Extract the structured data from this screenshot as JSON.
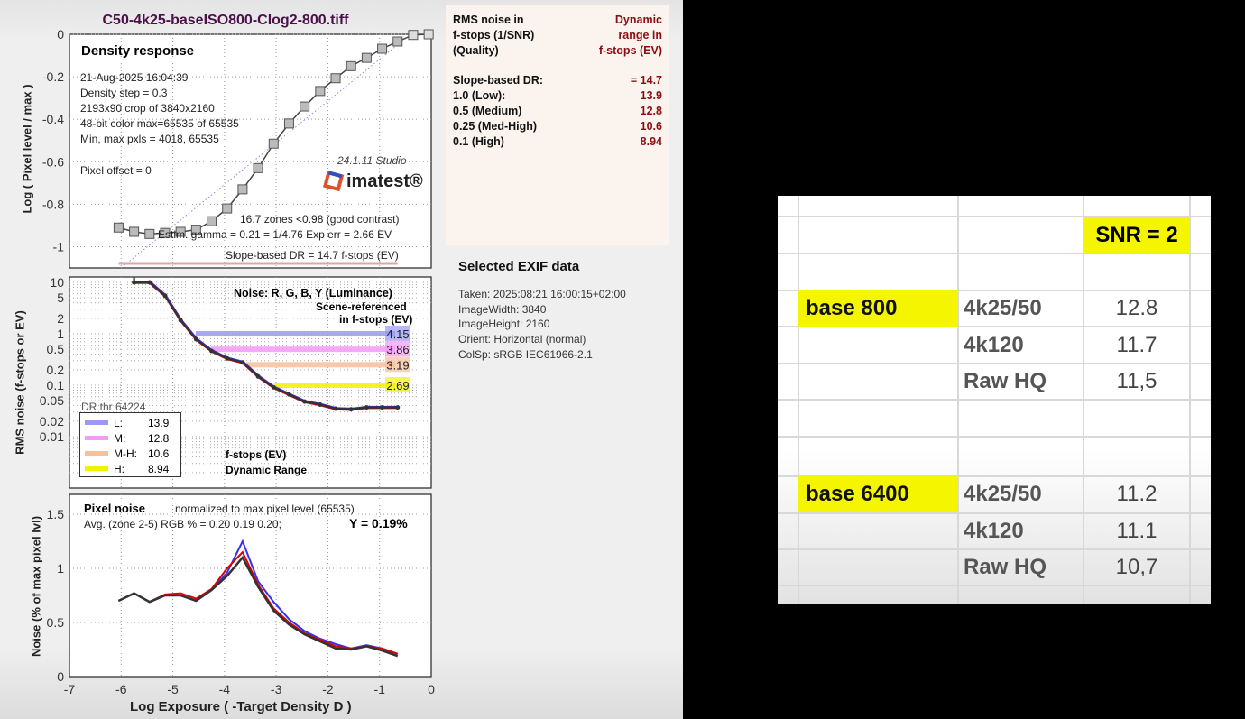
{
  "title": "C50-4k25-baseISO800-Clog2-800.tiff",
  "density": {
    "heading": "Density response",
    "info": [
      "21-Aug-2025 16:04:39",
      "Density step = 0.3",
      "2193x90 crop of 3840x2160",
      "48-bit color  max=65535 of 65535",
      "Min, max pxls = 4018, 65535"
    ],
    "pixel_offset": "Pixel offset = 0",
    "version": "24.1.11  Studio",
    "logo": "imatest®",
    "zones": "16.7 zones <0.98 (good contrast)",
    "gamma": "Estim. gamma = 0.21 = 1/4.76  Exp err = 2.66 EV",
    "slope_dr": "Slope-based DR = 14.7 f-stops (EV)",
    "ylabel": "Log ( Pixel level / max )"
  },
  "noise": {
    "heading": "Noise: R, G, B, Y (Luminance)",
    "scene1": "Scene-referenced",
    "scene2": "in f-stops (EV)",
    "dr_thr": "DR thr 64224",
    "legend": [
      {
        "k": "L:",
        "v": "13.9",
        "color": "#9a9af5"
      },
      {
        "k": "M:",
        "v": "12.8",
        "color": "#f59af5"
      },
      {
        "k": "M-H:",
        "v": "10.6",
        "color": "#f7c09a"
      },
      {
        "k": "H:",
        "v": "8.94",
        "color": "#f2f200"
      }
    ],
    "fstops": "f-stops (EV)",
    "dr": "Dynamic Range",
    "ylabel": "RMS noise (f-stops or EV)"
  },
  "pixelnoise": {
    "heading": "Pixel noise",
    "normalized": "normalized to max pixel level (65535)",
    "avg": "Avg. (zone 2-5) RGB % = 0.20  0.19  0.20;",
    "y": "Y = 0.19%",
    "ylabel": "Noise (% of max pixel lvl)",
    "xlabel": "Log Exposure ( -Target Density D )"
  },
  "panel": {
    "h_left": [
      "RMS noise in",
      "f-stops (1/SNR)",
      "(Quality)"
    ],
    "h_right": [
      "Dynamic",
      "range in",
      "f-stops (EV)"
    ],
    "rows": [
      [
        "Slope-based DR:",
        "= 14.7"
      ],
      [
        "1.0   (Low):",
        "13.9"
      ],
      [
        "0.5   (Medium)",
        "12.8"
      ],
      [
        "0.25 (Med-High)",
        "10.6"
      ],
      [
        "0.1   (High)",
        "8.94"
      ]
    ]
  },
  "exif": {
    "title": "Selected EXIF data",
    "lines": [
      "Taken: 2025:08:21 16:00:15+02:00",
      "ImageWidth:  3840",
      "ImageHeight:  2160",
      "Orient: Horizontal (normal)",
      "ColSp:  sRGB IEC61966-2.1"
    ]
  },
  "sheet": {
    "snr": "SNR = 2",
    "groups": [
      {
        "label": "base 800",
        "rows": [
          [
            "4k25/50",
            "12.8"
          ],
          [
            "4k120",
            "11.7"
          ],
          [
            "Raw HQ",
            "11,5"
          ]
        ]
      },
      {
        "label": "base 6400",
        "rows": [
          [
            "4k25/50",
            "11.2"
          ],
          [
            "4k120",
            "11.1"
          ],
          [
            "Raw HQ",
            "10,7"
          ]
        ]
      }
    ]
  },
  "chart_data": [
    {
      "type": "line",
      "title": "Density response",
      "xlabel": "Log Exposure ( -Target Density D )",
      "ylabel": "Log ( Pixel level / max )",
      "xlim": [
        -7,
        0
      ],
      "ylim": [
        -1.1,
        0
      ],
      "xticks": [
        -7,
        -6,
        -5,
        -4,
        -3,
        -2,
        -1,
        0
      ],
      "yticks": [
        0,
        -0.2,
        -0.4,
        -0.6,
        -0.8,
        -1
      ],
      "x": [
        -6.05,
        -5.75,
        -5.45,
        -5.15,
        -4.85,
        -4.55,
        -4.25,
        -3.95,
        -3.65,
        -3.35,
        -3.05,
        -2.75,
        -2.45,
        -2.15,
        -1.85,
        -1.55,
        -1.25,
        -0.95,
        -0.65,
        -0.35,
        -0.05
      ],
      "y": [
        -0.91,
        -0.93,
        -0.94,
        -0.935,
        -0.93,
        -0.92,
        -0.88,
        -0.82,
        -0.73,
        -0.63,
        -0.515,
        -0.42,
        -0.34,
        -0.267,
        -0.207,
        -0.15,
        -0.111,
        -0.068,
        -0.034,
        -0.003,
        0
      ]
    },
    {
      "type": "line",
      "title": "Noise: R, G, B, Y (Luminance)",
      "yscale": "log",
      "ylim": [
        0.001,
        12
      ],
      "xlim": [
        -7,
        0
      ],
      "yticks": [
        {
          "v": 10,
          "l": "10"
        },
        {
          "v": 5,
          "l": "5"
        },
        {
          "v": 2,
          "l": "2"
        },
        {
          "v": 1,
          "l": "1"
        },
        {
          "v": 0.5,
          "l": "0.5"
        },
        {
          "v": 0.2,
          "l": "0.2"
        },
        {
          "v": 0.1,
          "l": "0.1"
        },
        {
          "v": 0.05,
          "l": "0.05"
        },
        {
          "v": 0.02,
          "l": "0.02"
        },
        {
          "v": 0.01,
          "l": "0.01"
        }
      ],
      "x": [
        -5.75,
        -5.45,
        -5.15,
        -4.85,
        -4.55,
        -4.25,
        -3.95,
        -3.65,
        -3.35,
        -3.05,
        -2.75,
        -2.45,
        -2.15,
        -1.85,
        -1.55,
        -1.25,
        -0.95,
        -0.65
      ],
      "y": [
        10,
        10,
        5.5,
        1.83,
        0.785,
        0.464,
        0.332,
        0.278,
        0.148,
        0.091,
        0.066,
        0.048,
        0.042,
        0.035,
        0.034,
        0.037,
        0.037,
        0.037
      ],
      "dr_bars": [
        {
          "level": 1.0,
          "x0": -4.56,
          "label": "4.15",
          "color": "#9a9af5"
        },
        {
          "level": 0.5,
          "x0": -4.26,
          "label": "3.86",
          "color": "#f59af5"
        },
        {
          "level": 0.25,
          "x0": -3.58,
          "label": "3.19",
          "color": "#f7c09a"
        },
        {
          "level": 0.1,
          "x0": -3.04,
          "label": "2.69",
          "color": "#f2f200"
        }
      ]
    },
    {
      "type": "line",
      "title": "Pixel noise",
      "xlabel": "Log Exposure ( -Target Density D )",
      "ylabel": "Noise (% of max pixel lvl)",
      "xlim": [
        -7,
        0
      ],
      "ylim": [
        0,
        1.65
      ],
      "xticks": [
        -7,
        -6,
        -5,
        -4,
        -3,
        -2,
        -1,
        0
      ],
      "yticks": [
        0,
        0.5,
        1,
        1.5
      ],
      "x": [
        -6.05,
        -5.75,
        -5.45,
        -5.15,
        -4.85,
        -4.55,
        -4.25,
        -3.95,
        -3.65,
        -3.35,
        -3.05,
        -2.75,
        -2.45,
        -2.15,
        -1.85,
        -1.55,
        -1.25,
        -0.95,
        -0.65
      ],
      "series": [
        {
          "name": "B",
          "color": "#3a2ff0",
          "values": [
            0.7,
            0.77,
            0.69,
            0.75,
            0.75,
            0.7,
            0.8,
            0.96,
            1.25,
            0.88,
            0.69,
            0.53,
            0.42,
            0.35,
            0.3,
            0.26,
            0.29,
            0.26,
            0.21
          ]
        },
        {
          "name": "R",
          "color": "#e00000",
          "values": [
            0.7,
            0.77,
            0.69,
            0.76,
            0.77,
            0.72,
            0.81,
            1.0,
            1.15,
            0.85,
            0.63,
            0.5,
            0.4,
            0.34,
            0.28,
            0.26,
            0.28,
            0.26,
            0.21
          ]
        },
        {
          "name": "Y",
          "color": "#333333",
          "values": [
            0.7,
            0.77,
            0.69,
            0.75,
            0.75,
            0.7,
            0.8,
            0.93,
            1.1,
            0.83,
            0.61,
            0.48,
            0.39,
            0.325,
            0.26,
            0.25,
            0.28,
            0.24,
            0.19
          ]
        }
      ]
    }
  ]
}
